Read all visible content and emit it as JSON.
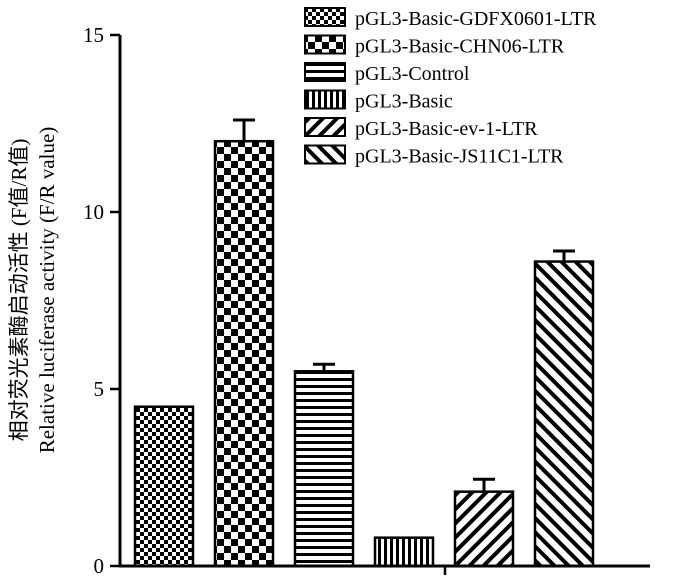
{
  "chart_data": {
    "type": "bar",
    "title": "",
    "xlabel": "",
    "ylabel_cn": "相对荧光素酶启动活性 (F值/R值)",
    "ylabel_en": "Relative luciferase activity (F/R value)",
    "ylim": [
      0,
      15
    ],
    "yticks": [
      0,
      5,
      10,
      15
    ],
    "ytick_labels": [
      "0",
      "5",
      "10",
      "15"
    ],
    "legend_position": "top-right",
    "series": [
      {
        "name": "pGL3-Basic-GDFX0601-LTR",
        "value": 4.5,
        "error": 0.0,
        "pattern": "checker-fine"
      },
      {
        "name": "pGL3-Basic-CHN06-LTR",
        "value": 12.0,
        "error": 0.6,
        "pattern": "checker"
      },
      {
        "name": "pGL3-Control",
        "value": 5.5,
        "error": 0.2,
        "pattern": "horizontal"
      },
      {
        "name": "pGL3-Basic",
        "value": 0.8,
        "error": 0.0,
        "pattern": "vertical"
      },
      {
        "name": "pGL3-Basic-ev-1-LTR",
        "value": 2.1,
        "error": 0.35,
        "pattern": "diag-up"
      },
      {
        "name": "pGL3-Basic-JS11C1-LTR",
        "value": 8.6,
        "error": 0.3,
        "pattern": "diag-down"
      }
    ]
  }
}
